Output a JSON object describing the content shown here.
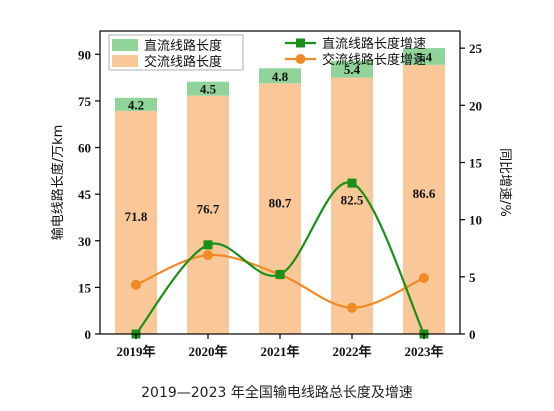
{
  "caption": "2019—2023 年全国输电线路总长度及增速",
  "chart_data": {
    "type": "bar",
    "categories": [
      "2019年",
      "2020年",
      "2021年",
      "2022年",
      "2023年"
    ],
    "ylabel": "输电线路长度/万km",
    "y2label": "同比增速/%",
    "ylim": [
      0,
      97.5
    ],
    "yticks": [
      0,
      15,
      30,
      45,
      60,
      75,
      90
    ],
    "y2lim": [
      0,
      26.5
    ],
    "y2ticks": [
      0,
      5,
      10,
      15,
      20,
      25
    ],
    "series": [
      {
        "name": "交流线路长度",
        "kind": "bar",
        "stack": "base",
        "color": "#fac898",
        "values": [
          71.8,
          76.7,
          80.7,
          82.5,
          86.6
        ],
        "labels": [
          "71.8",
          "76.7",
          "80.7",
          "82.5",
          "86.6"
        ]
      },
      {
        "name": "直流线路长度",
        "kind": "bar",
        "stack": "top",
        "color": "#90d49a",
        "values": [
          4.2,
          4.5,
          4.8,
          5.4,
          5.4
        ],
        "labels": [
          "4.2",
          "4.5",
          "4.8",
          "5.4",
          "5.4"
        ]
      },
      {
        "name": "直流线路长度增速",
        "kind": "line",
        "axis": "y2",
        "color": "#1a8f1a",
        "marker": "square",
        "values": [
          0,
          7.8,
          5.2,
          13.2,
          0
        ]
      },
      {
        "name": "交流线路长度增速",
        "kind": "line",
        "axis": "y2",
        "color": "#f08a24",
        "marker": "circle",
        "values": [
          4.3,
          6.9,
          5.2,
          2.3,
          4.9
        ]
      }
    ],
    "legend_left": [
      "直流线路长度",
      "交流线路长度"
    ],
    "legend_right": [
      "直流线路长度增速",
      "交流线路长度增速"
    ],
    "legend_placement": "top"
  }
}
